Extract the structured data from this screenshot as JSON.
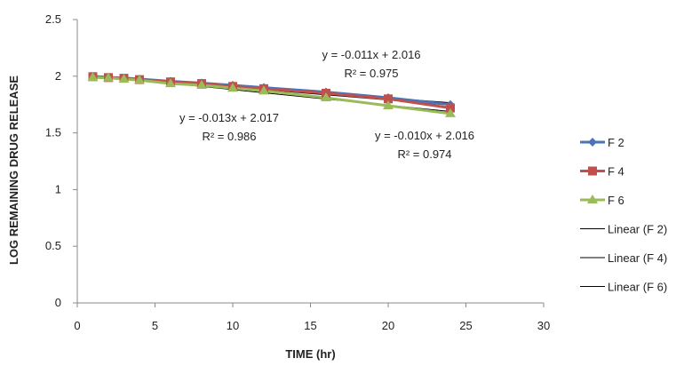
{
  "chart_data": {
    "type": "line",
    "xlabel": "TIME (hr)",
    "ylabel": "LOG REMAINING DRUG RELEASE",
    "xlim": [
      0,
      30
    ],
    "ylim": [
      0,
      2.5
    ],
    "xticks": [
      "0",
      "5",
      "10",
      "15",
      "20",
      "25",
      "30"
    ],
    "yticks": [
      "0",
      "0.5",
      "1",
      "1.5",
      "2",
      "2.5"
    ],
    "grid": false,
    "legend_position": "right",
    "x": [
      1,
      2,
      3,
      4,
      6,
      8,
      10,
      12,
      16,
      20,
      24
    ],
    "series": [
      {
        "name": "F 2",
        "color": "#4a74b5",
        "marker": "diamond",
        "values": [
          1.997,
          1.99,
          1.985,
          1.975,
          1.955,
          1.94,
          1.92,
          1.9,
          1.86,
          1.81,
          1.75
        ]
      },
      {
        "name": "F 4",
        "color": "#c0504d",
        "marker": "square",
        "values": [
          1.996,
          1.988,
          1.982,
          1.97,
          1.95,
          1.935,
          1.91,
          1.89,
          1.85,
          1.8,
          1.72
        ]
      },
      {
        "name": "F 6",
        "color": "#9bbb59",
        "marker": "triangle",
        "values": [
          1.99,
          1.985,
          1.975,
          1.965,
          1.935,
          1.92,
          1.895,
          1.87,
          1.81,
          1.74,
          1.67
        ]
      }
    ],
    "trendlines": [
      {
        "name": "Linear (F 2)",
        "color": "#000000"
      },
      {
        "name": "Linear (F 4)",
        "color": "#000000"
      },
      {
        "name": "Linear (F 6)",
        "color": "#000000"
      }
    ],
    "annotations": [
      {
        "equation": "y = -0.011x + 2.016",
        "r2": "R² = 0.975"
      },
      {
        "equation": "y = -0.013x + 2.017",
        "r2": "R² = 0.986"
      },
      {
        "equation": "y = -0.010x + 2.016",
        "r2": "R² = 0.974"
      }
    ]
  }
}
